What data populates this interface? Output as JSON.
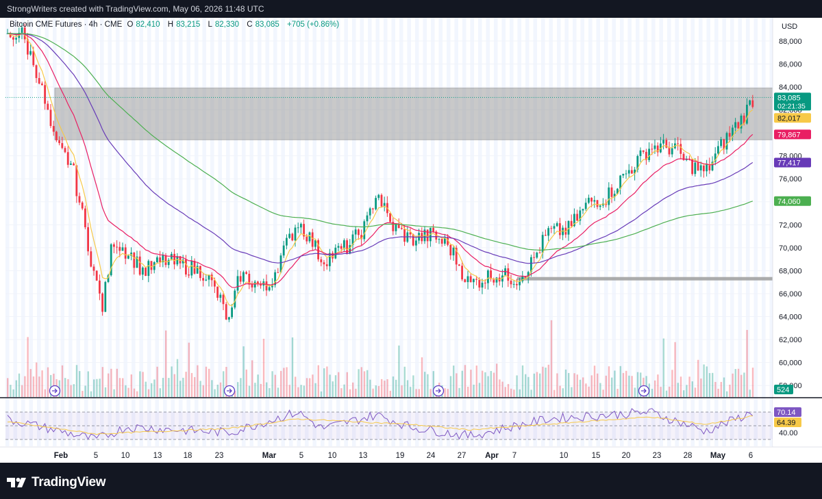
{
  "attribution": "StrongWriters created with TradingView.com, May 06, 2026 11:48 UTC",
  "branding": {
    "logo_text": "TradingView",
    "logo_icon": "tradingview-logo-icon"
  },
  "legend": {
    "symbol": "Bitcoin CME Futures · 4h · CME",
    "open_label": "O",
    "open": "82,410",
    "high_label": "H",
    "high": "83,215",
    "low_label": "L",
    "low": "82,330",
    "close_label": "C",
    "close": "83,085",
    "change": "+705 (+0.86%)"
  },
  "colors": {
    "up": "#089981",
    "down": "#f23645",
    "ma_fast": "#f7c948",
    "ma_mid": "#e91e63",
    "ma_slow": "#673ab7",
    "ma_long": "#4caf50",
    "zone": "#9e9e9e",
    "rsi": "#7e57c2",
    "rsi_ma": "#f7c948"
  },
  "chart_data": [
    {
      "type": "candlestick",
      "title": "Bitcoin CME Futures · 4h · CME",
      "currency": "USD",
      "ylim": [
        57000,
        91000
      ],
      "y_ticks": [
        58000,
        60000,
        62000,
        64000,
        66000,
        68000,
        70000,
        72000,
        74000,
        76000,
        78000,
        80000,
        82000,
        84000,
        86000,
        88000
      ],
      "y_tick_labels": [
        "58,000",
        "60,000",
        "62,000",
        "64,000",
        "66,000",
        "68,000",
        "70,000",
        "72,000",
        "74,000",
        "76,000",
        "78,000",
        "80,000",
        "82,000",
        "84,000",
        "86,000",
        "88,000"
      ],
      "x_labels": [
        "Feb",
        "5",
        "10",
        "13",
        "18",
        "23",
        "Mar",
        "5",
        "10",
        "13",
        "19",
        "24",
        "27",
        "Apr",
        "7",
        "10",
        "15",
        "20",
        "23",
        "28",
        "May",
        "6"
      ],
      "bold_x_labels": [
        "Feb",
        "Mar",
        "Apr",
        "May"
      ],
      "price_path": [
        [
          "Jan 28",
          88200
        ],
        [
          "Jan 29",
          88900
        ],
        [
          "Jan 30",
          85200
        ],
        [
          "Feb 1",
          79000
        ],
        [
          "Feb 3",
          77200
        ],
        [
          "Feb 5",
          67000
        ],
        [
          "Feb 6",
          64800
        ],
        [
          "Feb 7",
          70800
        ],
        [
          "Feb 9",
          69400
        ],
        [
          "Feb 12",
          67900
        ],
        [
          "Feb 14",
          68900
        ],
        [
          "Feb 17",
          68400
        ],
        [
          "Feb 20",
          67800
        ],
        [
          "Feb 23",
          65600
        ],
        [
          "Feb 24",
          63400
        ],
        [
          "Feb 26",
          67700
        ],
        [
          "Mar 1",
          66300
        ],
        [
          "Mar 3",
          69200
        ],
        [
          "Mar 5",
          72300
        ],
        [
          "Mar 7",
          70600
        ],
        [
          "Mar 9",
          68900
        ],
        [
          "Mar 12",
          70200
        ],
        [
          "Mar 14",
          72000
        ],
        [
          "Mar 16",
          75000
        ],
        [
          "Mar 18",
          72000
        ],
        [
          "Mar 21",
          70700
        ],
        [
          "Mar 24",
          71100
        ],
        [
          "Mar 26",
          70200
        ],
        [
          "Mar 28",
          66800
        ],
        [
          "Mar 31",
          67700
        ],
        [
          "Apr 3",
          67300
        ],
        [
          "Apr 5",
          68600
        ],
        [
          "Apr 8",
          71300
        ],
        [
          "Apr 11",
          71600
        ],
        [
          "Apr 14",
          74000
        ],
        [
          "Apr 17",
          74400
        ],
        [
          "Apr 20",
          76200
        ],
        [
          "Apr 22",
          78800
        ],
        [
          "Apr 25",
          78700
        ],
        [
          "Apr 26",
          77500
        ],
        [
          "Apr 28",
          76500
        ],
        [
          "Apr 30",
          78600
        ],
        [
          "May 2",
          80300
        ],
        [
          "May 4",
          81400
        ],
        [
          "May 6",
          83085
        ]
      ],
      "moving_averages": [
        {
          "name": "ma-fast",
          "last": 82017,
          "color": "#f7c948"
        },
        {
          "name": "ma-mid",
          "last": 79867,
          "color": "#e91e63"
        },
        {
          "name": "ma-slow",
          "last": 77417,
          "color": "#673ab7"
        },
        {
          "name": "ma-long",
          "last": 74060,
          "color": "#4caf50"
        }
      ],
      "zones": [
        {
          "name": "resistance-zone",
          "from": 79400,
          "to": 83900
        },
        {
          "name": "support-line",
          "at": 67300,
          "start": "Apr 3"
        }
      ],
      "price_labels": [
        {
          "value": 83085,
          "text": "83,085",
          "sub": "02:21:35",
          "bg": "#089981",
          "fg": "#ffffff"
        },
        {
          "value": 82017,
          "text": "82,017",
          "bg": "#f7c948",
          "fg": "#131722"
        },
        {
          "value": 79867,
          "text": "79,867",
          "bg": "#e91e63",
          "fg": "#ffffff"
        },
        {
          "value": 77417,
          "text": "77,417",
          "bg": "#673ab7",
          "fg": "#ffffff"
        },
        {
          "value": 74060,
          "text": "74,060",
          "bg": "#4caf50",
          "fg": "#ffffff"
        }
      ],
      "volume_label": "524",
      "event_markers": [
        "Feb 1",
        "Feb 24",
        "Mar 27",
        "Apr 21"
      ]
    },
    {
      "type": "line",
      "title": "RSI",
      "ylim": [
        20,
        90
      ],
      "band": [
        30,
        70
      ],
      "y_tick_labels": [
        "40.00"
      ],
      "series": [
        {
          "values_path": [
            [
              "Jan 28",
              60
            ],
            [
              "Feb 5",
              30
            ],
            [
              "Feb 10",
              48
            ],
            [
              "Feb 24",
              40
            ],
            [
              "Mar 5",
              70
            ],
            [
              "Mar 9",
              46
            ],
            [
              "Mar 16",
              66
            ],
            [
              "Mar 21",
              48
            ],
            [
              "Mar 28",
              35
            ],
            [
              "Apr 8",
              60
            ],
            [
              "Apr 22",
              70
            ],
            [
              "Apr 28",
              42
            ],
            [
              "May 6",
              70.14
            ]
          ]
        },
        {
          "values_path": [
            [
              "Jan 28",
              56
            ],
            [
              "Feb 5",
              38
            ],
            [
              "Feb 24",
              46
            ],
            [
              "Mar 5",
              60
            ],
            [
              "Mar 21",
              52
            ],
            [
              "Mar 28",
              44
            ],
            [
              "Apr 22",
              63
            ],
            [
              "Apr 28",
              52
            ],
            [
              "May 6",
              64.39
            ]
          ]
        }
      ],
      "value_labels": [
        {
          "text": "70.14",
          "bg": "#7e57c2",
          "fg": "#ffffff"
        },
        {
          "text": "64.39",
          "bg": "#f7c948",
          "fg": "#131722"
        }
      ]
    }
  ]
}
